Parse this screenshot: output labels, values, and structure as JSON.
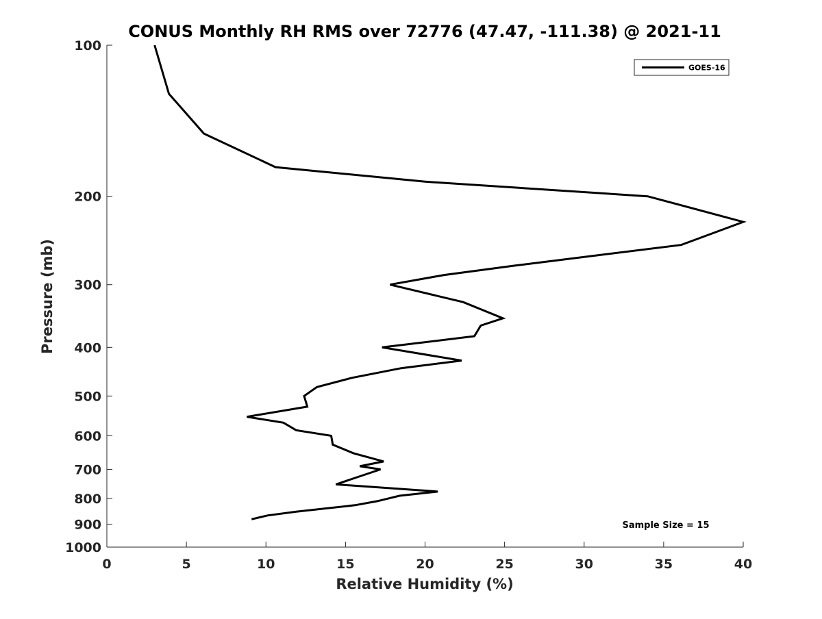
{
  "chart_data": {
    "type": "line",
    "title": "CONUS Monthly RH RMS over 72776 (47.47, -111.38) @ 2021-11",
    "xlabel": "Relative Humidity (%)",
    "ylabel": "Pressure (mb)",
    "xlim": [
      0,
      40
    ],
    "ylim": [
      100,
      1000
    ],
    "yscale": "log",
    "y_reversed": true,
    "xticks": [
      0,
      5,
      10,
      15,
      20,
      25,
      30,
      35,
      40
    ],
    "yticks": [
      100,
      200,
      300,
      400,
      500,
      600,
      700,
      800,
      900,
      1000
    ],
    "grid": false,
    "legend_position": "top-right",
    "annotation": "Sample Size = 15",
    "series": [
      {
        "name": "GOES-16",
        "color": "#000000",
        "points": [
          {
            "rh": 3.0,
            "p": 100
          },
          {
            "rh": 3.9,
            "p": 125
          },
          {
            "rh": 6.1,
            "p": 150
          },
          {
            "rh": 10.6,
            "p": 175
          },
          {
            "rh": 20.0,
            "p": 187
          },
          {
            "rh": 34.0,
            "p": 200
          },
          {
            "rh": 40.0,
            "p": 225
          },
          {
            "rh": 36.1,
            "p": 250
          },
          {
            "rh": 25.6,
            "p": 275
          },
          {
            "rh": 21.2,
            "p": 287
          },
          {
            "rh": 17.8,
            "p": 300
          },
          {
            "rh": 22.4,
            "p": 325
          },
          {
            "rh": 24.9,
            "p": 350
          },
          {
            "rh": 23.5,
            "p": 362
          },
          {
            "rh": 23.1,
            "p": 380
          },
          {
            "rh": 17.3,
            "p": 400
          },
          {
            "rh": 22.3,
            "p": 425
          },
          {
            "rh": 18.5,
            "p": 440
          },
          {
            "rh": 15.4,
            "p": 460
          },
          {
            "rh": 13.2,
            "p": 480
          },
          {
            "rh": 12.4,
            "p": 500
          },
          {
            "rh": 12.6,
            "p": 525
          },
          {
            "rh": 8.8,
            "p": 550
          },
          {
            "rh": 11.1,
            "p": 565
          },
          {
            "rh": 11.9,
            "p": 585
          },
          {
            "rh": 14.1,
            "p": 600
          },
          {
            "rh": 14.2,
            "p": 625
          },
          {
            "rh": 15.5,
            "p": 650
          },
          {
            "rh": 17.4,
            "p": 675
          },
          {
            "rh": 15.9,
            "p": 690
          },
          {
            "rh": 17.2,
            "p": 700
          },
          {
            "rh": 14.4,
            "p": 750
          },
          {
            "rh": 20.8,
            "p": 775
          },
          {
            "rh": 18.4,
            "p": 790
          },
          {
            "rh": 17.0,
            "p": 810
          },
          {
            "rh": 15.6,
            "p": 825
          },
          {
            "rh": 11.9,
            "p": 850
          },
          {
            "rh": 10.1,
            "p": 865
          },
          {
            "rh": 9.1,
            "p": 880
          }
        ]
      }
    ]
  }
}
